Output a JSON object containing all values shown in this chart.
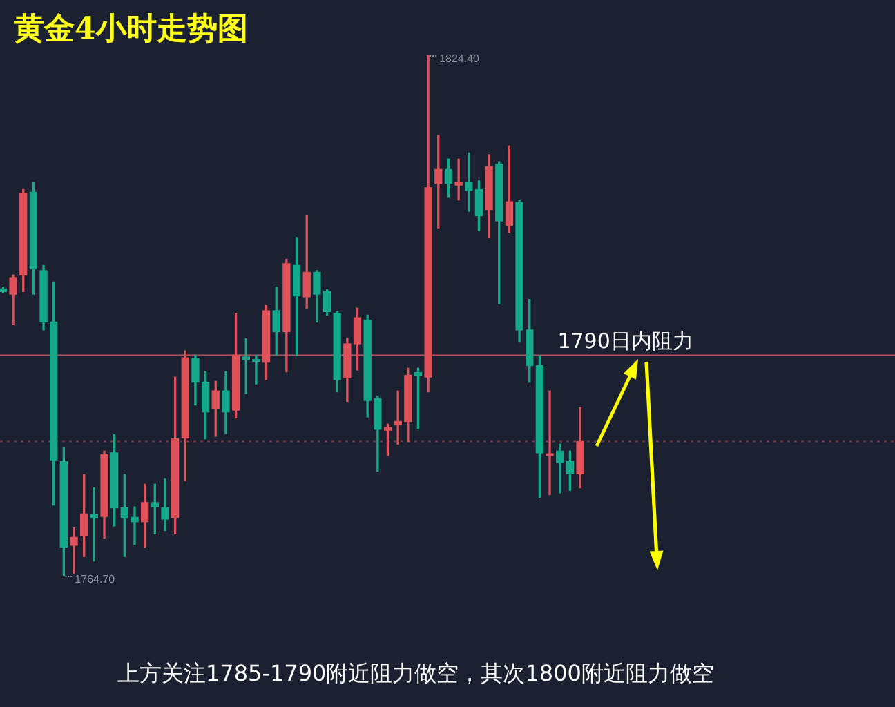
{
  "chart_data": {
    "type": "candlestick",
    "title": "黄金4小时走势图",
    "categories": [
      null,
      null,
      null,
      null,
      null,
      null,
      null,
      null,
      null,
      null,
      null,
      null,
      null,
      null,
      null,
      null,
      null,
      null,
      null,
      null,
      null,
      null,
      null,
      null,
      null,
      null,
      null,
      null,
      null,
      null,
      null,
      null,
      null,
      null,
      null,
      null,
      null,
      null,
      null,
      null,
      null,
      null,
      null,
      null,
      null,
      null,
      null,
      null,
      null,
      null,
      null,
      null,
      null,
      null,
      null,
      null,
      null,
      null
    ],
    "ohlc": [
      [
        1797.6,
        1797.8,
        1797.2,
        1797.3
      ],
      [
        1797.0,
        1799.2,
        1793.5,
        1798.9
      ],
      [
        1799.2,
        1809.0,
        1797.3,
        1808.6
      ],
      [
        1808.7,
        1809.8,
        1797.0,
        1799.9
      ],
      [
        1799.7,
        1800.3,
        1792.9,
        1793.8
      ],
      [
        1793.8,
        1798.4,
        1772.8,
        1778.0
      ],
      [
        1777.8,
        1779.4,
        1764.7,
        1768.0
      ],
      [
        1768.2,
        1770.2,
        1765.0,
        1769.1
      ],
      [
        1769.3,
        1776.3,
        1766.9,
        1771.8
      ],
      [
        1771.7,
        1774.8,
        1766.4,
        1771.4
      ],
      [
        1771.5,
        1779.0,
        1769.0,
        1778.6
      ],
      [
        1778.8,
        1780.9,
        1770.4,
        1772.5
      ],
      [
        1772.5,
        1776.3,
        1766.9,
        1771.4
      ],
      [
        1771.4,
        1772.6,
        1768.3,
        1770.9
      ],
      [
        1770.9,
        1775.2,
        1768.0,
        1773.1
      ],
      [
        1773.1,
        1775.2,
        1769.5,
        1772.6
      ],
      [
        1772.5,
        1775.8,
        1769.9,
        1771.2
      ],
      [
        1771.4,
        1787.5,
        1769.5,
        1780.4
      ],
      [
        1780.5,
        1790.5,
        1775.6,
        1789.7
      ],
      [
        1789.6,
        1790.0,
        1784.3,
        1786.9
      ],
      [
        1786.9,
        1788.1,
        1780.4,
        1783.5
      ],
      [
        1783.9,
        1787.0,
        1780.7,
        1785.9
      ],
      [
        1785.9,
        1788.1,
        1781.0,
        1783.5
      ],
      [
        1783.7,
        1794.8,
        1782.8,
        1790.0
      ],
      [
        1789.8,
        1791.9,
        1785.6,
        1789.5
      ],
      [
        1789.5,
        1790.0,
        1786.7,
        1789.3
      ],
      [
        1789.2,
        1795.7,
        1787.2,
        1795.1
      ],
      [
        1795.1,
        1797.8,
        1790.0,
        1792.7
      ],
      [
        1792.7,
        1801.0,
        1788.1,
        1800.5
      ],
      [
        1800.3,
        1803.5,
        1790.0,
        1796.8
      ],
      [
        1796.7,
        1806.0,
        1795.4,
        1799.5
      ],
      [
        1799.5,
        1799.7,
        1793.8,
        1797.0
      ],
      [
        1797.3,
        1797.5,
        1794.6,
        1795.0
      ],
      [
        1794.8,
        1795.0,
        1785.8,
        1787.2
      ],
      [
        1787.4,
        1791.9,
        1784.7,
        1791.3
      ],
      [
        1791.3,
        1795.4,
        1788.3,
        1794.3
      ],
      [
        1794.0,
        1794.6,
        1782.9,
        1784.8
      ],
      [
        1785.0,
        1785.3,
        1776.7,
        1781.5
      ],
      [
        1781.4,
        1782.1,
        1778.5,
        1781.7
      ],
      [
        1782.0,
        1785.9,
        1779.8,
        1782.4
      ],
      [
        1782.4,
        1788.5,
        1780.1,
        1787.7
      ],
      [
        1788.0,
        1788.5,
        1781.6,
        1787.7
      ],
      [
        1787.5,
        1824.4,
        1785.8,
        1809.2
      ],
      [
        1809.7,
        1815.2,
        1804.6,
        1811.3
      ],
      [
        1811.3,
        1812.5,
        1808.1,
        1809.7
      ],
      [
        1809.5,
        1812.5,
        1807.8,
        1809.8
      ],
      [
        1809.8,
        1813.2,
        1806.5,
        1808.9
      ],
      [
        1809.0,
        1810.0,
        1804.3,
        1806.0
      ],
      [
        1806.7,
        1813.0,
        1803.5,
        1811.6
      ],
      [
        1811.9,
        1812.2,
        1795.9,
        1805.4
      ],
      [
        1804.9,
        1814.0,
        1804.1,
        1807.6
      ],
      [
        1807.5,
        1807.8,
        1791.5,
        1792.9
      ],
      [
        1792.9,
        1796.4,
        1786.9,
        1788.8
      ],
      [
        1788.8,
        1789.9,
        1773.7,
        1778.8
      ],
      [
        1778.5,
        1785.9,
        1774.0,
        1778.7
      ],
      [
        1779.0,
        1779.8,
        1774.2,
        1777.7
      ],
      [
        1777.8,
        1779.0,
        1774.5,
        1776.4
      ],
      [
        1776.4,
        1784.0,
        1774.8,
        1780.1
      ]
    ],
    "colors": [
      "#15a98b",
      "#e0525a",
      "#e0525a",
      "#15a98b",
      "#15a98b",
      "#15a98b",
      "#15a98b",
      "#e0525a",
      "#e0525a",
      "#15a98b",
      "#e0525a",
      "#15a98b",
      "#15a98b",
      "#15a98b",
      "#e0525a",
      "#15a98b",
      "#15a98b",
      "#e0525a",
      "#e0525a",
      "#15a98b",
      "#15a98b",
      "#e0525a",
      "#15a98b",
      "#e0525a",
      "#15a98b",
      "#15a98b",
      "#e0525a",
      "#15a98b",
      "#e0525a",
      "#15a98b",
      "#e0525a",
      "#15a98b",
      "#15a98b",
      "#15a98b",
      "#e0525a",
      "#e0525a",
      "#15a98b",
      "#15a98b",
      "#e0525a",
      "#e0525a",
      "#e0525a",
      "#15a98b",
      "#e0525a",
      "#e0525a",
      "#15a98b",
      "#e0525a",
      "#15a98b",
      "#15a98b",
      "#e0525a",
      "#15a98b",
      "#e0525a",
      "#15a98b",
      "#15a98b",
      "#15a98b",
      "#e0525a",
      "#15a98b",
      "#15a98b",
      "#e0525a"
    ],
    "ref_lines": [
      {
        "axis": "y",
        "value": 1790,
        "label": "1790日内阻力",
        "color": "#b0565c"
      },
      {
        "axis": "y",
        "value": 1780.1,
        "label": null,
        "color": "#7a3a44",
        "line_style": "dotted"
      }
    ],
    "annotations": [
      "1824.40",
      "1764.70",
      "上方关注1785-1790附近阻力做空，其次1800附近阻力做空"
    ],
    "tick_labels": false
  }
}
